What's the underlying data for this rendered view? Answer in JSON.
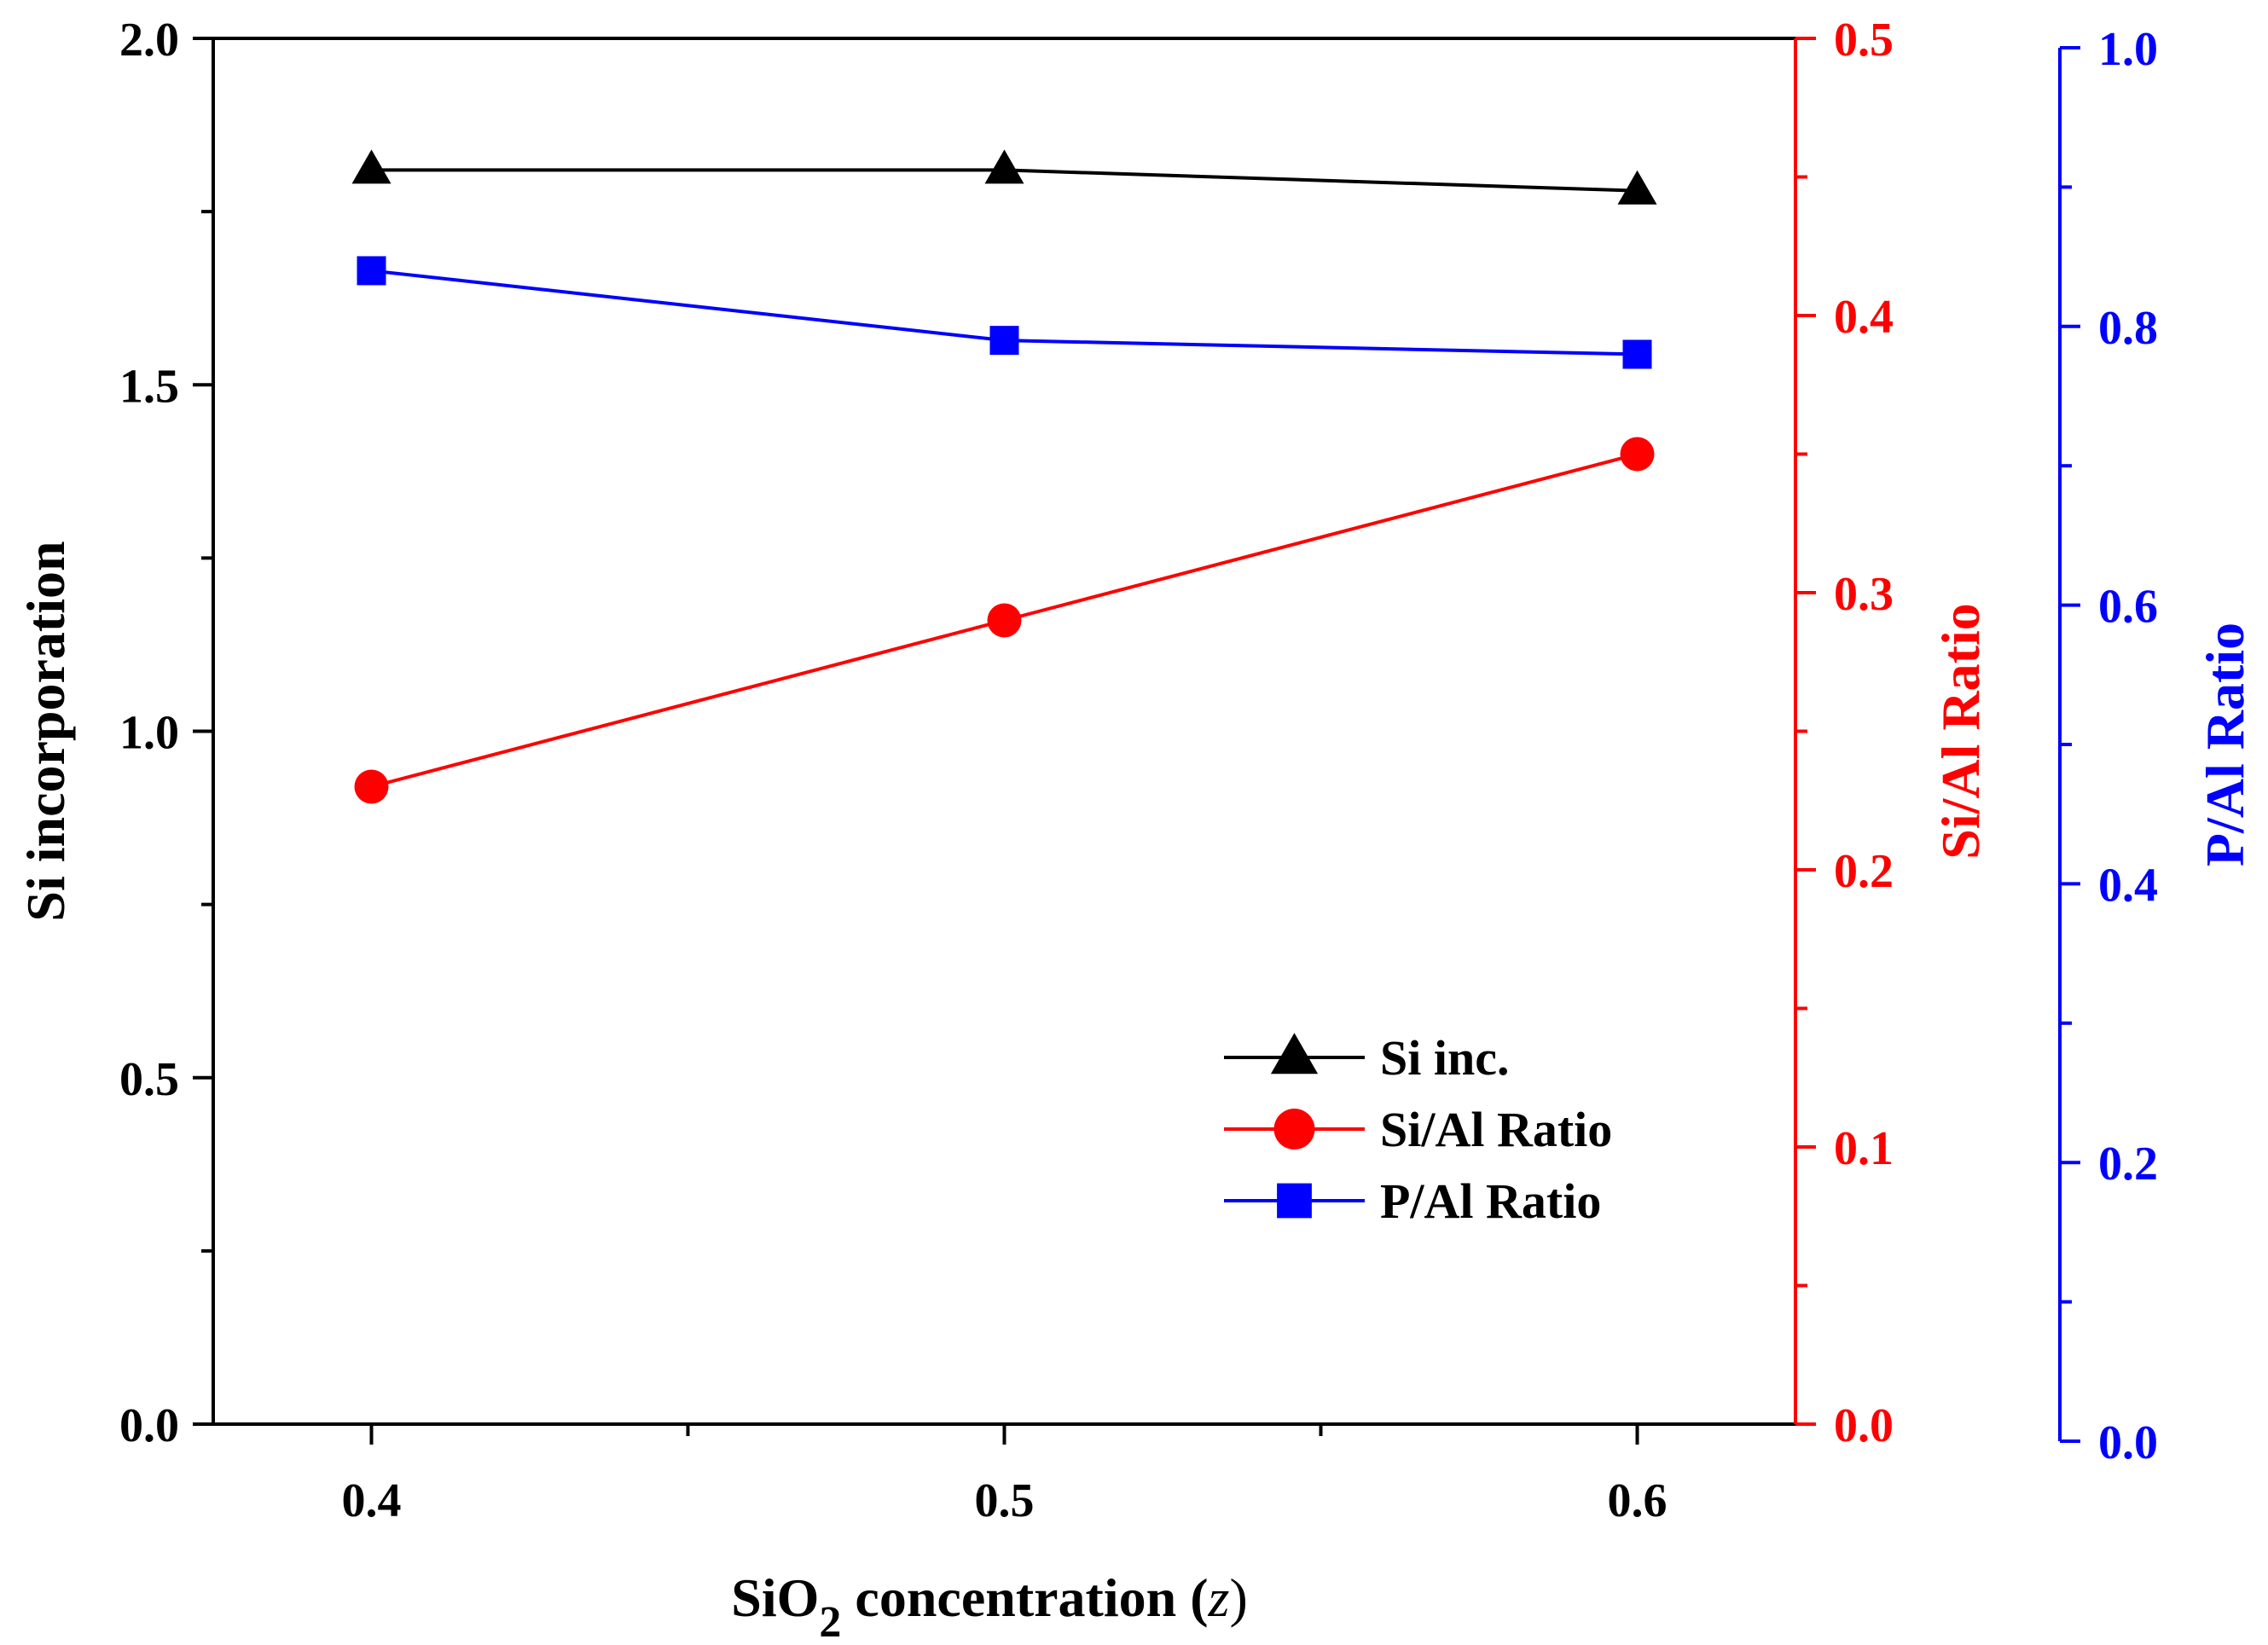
{
  "chart_data": {
    "type": "line",
    "x_axis": {
      "label_main": "SiO",
      "label_sub": "2",
      "label_rest": " concentration (",
      "label_var": "z",
      "label_close": ")",
      "ticks": [
        0.4,
        0.5,
        0.6
      ],
      "tick_labels": [
        "0.4",
        "0.5",
        "0.6"
      ],
      "range": [
        0.375,
        0.625
      ]
    },
    "y_axes": [
      {
        "id": "left",
        "label": "Si incorporation",
        "color": "#000000",
        "range": [
          0.0,
          2.0
        ],
        "ticks": [
          0.0,
          0.5,
          1.0,
          1.5,
          2.0
        ],
        "tick_labels": [
          "0.0",
          "0.5",
          "1.0",
          "1.5",
          "2.0"
        ]
      },
      {
        "id": "right1",
        "label": "Si/Al Ratio",
        "color": "#ff0000",
        "range": [
          0.0,
          0.5
        ],
        "ticks": [
          0.0,
          0.1,
          0.2,
          0.3,
          0.4,
          0.5
        ],
        "tick_labels": [
          "0.0",
          "0.1",
          "0.2",
          "0.3",
          "0.4",
          "0.5"
        ]
      },
      {
        "id": "right2",
        "label": "P/Al Ratio",
        "color": "#0000ff",
        "range": [
          0.0,
          1.0
        ],
        "ticks": [
          0.0,
          0.2,
          0.4,
          0.6,
          0.8,
          1.0
        ],
        "tick_labels": [
          "0.0",
          "0.2",
          "0.4",
          "0.6",
          "0.8",
          "1.0"
        ]
      }
    ],
    "series": [
      {
        "name": "Si inc.",
        "axis": "left",
        "color": "#000000",
        "marker": "triangle",
        "x": [
          0.4,
          0.5,
          0.6
        ],
        "values": [
          1.81,
          1.81,
          1.78
        ]
      },
      {
        "name": "Si/Al Ratio",
        "axis": "right1",
        "color": "#ff0000",
        "marker": "circle",
        "x": [
          0.4,
          0.5,
          0.6
        ],
        "values": [
          0.23,
          0.29,
          0.35
        ]
      },
      {
        "name": "P/Al Ratio",
        "axis": "right2",
        "color": "#0000ff",
        "marker": "square",
        "x": [
          0.4,
          0.5,
          0.6
        ],
        "values": [
          0.84,
          0.79,
          0.78
        ]
      }
    ],
    "legend": {
      "position": "bottom-center-right"
    },
    "grid": false
  }
}
